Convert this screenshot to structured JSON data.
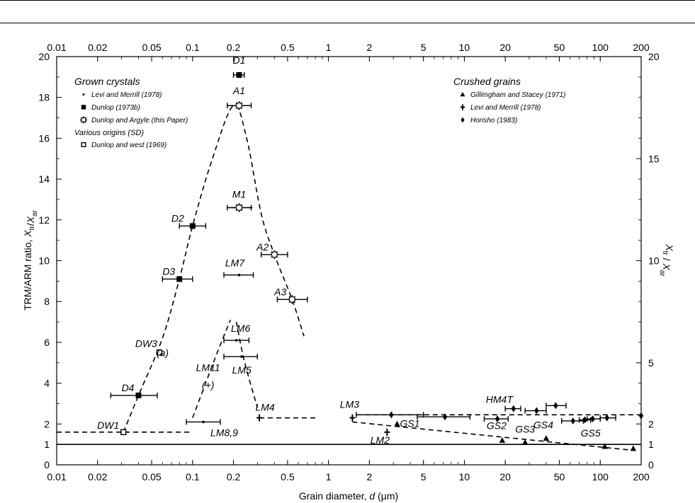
{
  "chart_data": {
    "type": "scatter",
    "x_scale": "log",
    "xlim": [
      0.01,
      200
    ],
    "ylim": [
      0,
      20
    ],
    "xlabel": "Grain diameter, d (μm)",
    "ylabel": "TRM/ARM ratio, X_tr/X_ar",
    "right_ylabel": "X_tr / X_ar",
    "x_ticks": [
      "0.01",
      "0.02",
      "0.05",
      "0.1",
      "0.2",
      "0.5",
      "1",
      "2",
      "5",
      "10",
      "20",
      "50",
      "100",
      "200"
    ],
    "x_tick_values": [
      0.01,
      0.02,
      0.05,
      0.1,
      0.2,
      0.5,
      1,
      2,
      5,
      10,
      20,
      50,
      100,
      200
    ],
    "y_ticks_left": [
      "0",
      "1",
      "2",
      "4",
      "6",
      "8",
      "10",
      "12",
      "14",
      "16",
      "18",
      "20"
    ],
    "y_tick_values_left": [
      0,
      1,
      2,
      4,
      6,
      8,
      10,
      12,
      14,
      16,
      18,
      20
    ],
    "y_ticks_right": [
      "0",
      "1",
      "2",
      "5",
      "10",
      "15",
      "20"
    ],
    "y_tick_values_right": [
      0,
      1,
      2,
      5,
      10,
      15,
      20
    ],
    "grid": false,
    "legends": [
      {
        "title": "Grown crystals",
        "position": "top-left",
        "items": [
          {
            "marker": "small-dot",
            "label": "Levi and Merrill (1978)"
          },
          {
            "marker": "filled-square",
            "label": "Dunlop (1973b)"
          },
          {
            "marker": "open-star",
            "label": "Dunlop and Argyle (this Paper)"
          }
        ],
        "subtitle": "Various origins (SD)",
        "sub_items": [
          {
            "marker": "open-square",
            "label": "Dunlop and west (1969)"
          }
        ]
      },
      {
        "title": "Crushed grains",
        "position": "top-right",
        "items": [
          {
            "marker": "filled-triangle",
            "label": "Gillimgham and Stacey (1971)"
          },
          {
            "marker": "plus",
            "label": "Levi and Merrill (1978)"
          },
          {
            "marker": "filled-diamond",
            "label": "Horisho (1983)"
          }
        ]
      }
    ],
    "points": [
      {
        "label": "D1",
        "x": 0.22,
        "y": 19.1,
        "marker": "filled-square",
        "xerr": [
          0.2,
          0.24
        ]
      },
      {
        "label": "A1",
        "x": 0.22,
        "y": 17.6,
        "marker": "open-star",
        "xerr": [
          0.18,
          0.27
        ]
      },
      {
        "label": "M1",
        "x": 0.22,
        "y": 12.6,
        "marker": "open-star",
        "xerr": [
          0.18,
          0.27
        ]
      },
      {
        "label": "D2",
        "x": 0.1,
        "y": 11.7,
        "marker": "filled-square",
        "xerr": [
          0.08,
          0.125
        ]
      },
      {
        "label": "A2",
        "x": 0.4,
        "y": 10.3,
        "marker": "open-star",
        "xerr": [
          0.32,
          0.5
        ]
      },
      {
        "label": "LM7",
        "x": 0.22,
        "y": 9.3,
        "marker": "small-dot",
        "xerr": [
          0.17,
          0.28
        ]
      },
      {
        "label": "D3",
        "x": 0.08,
        "y": 9.1,
        "marker": "filled-square",
        "xerr": [
          0.06,
          0.1
        ]
      },
      {
        "label": "A3",
        "x": 0.54,
        "y": 8.1,
        "marker": "open-star",
        "xerr": [
          0.42,
          0.7
        ]
      },
      {
        "label": "LM6",
        "x": 0.21,
        "y": 6.1,
        "marker": "small-dot",
        "xerr": [
          0.17,
          0.26
        ]
      },
      {
        "label": "DW3",
        "x": 0.057,
        "y": 5.5,
        "marker": "open-square",
        "xerr": null
      },
      {
        "label": "LM5",
        "x": 0.23,
        "y": 5.3,
        "marker": "small-dot",
        "xerr": [
          0.17,
          0.3
        ]
      },
      {
        "label": "D4",
        "x": 0.04,
        "y": 3.4,
        "marker": "filled-square",
        "xerr": [
          0.025,
          0.055
        ]
      },
      {
        "label": "LM4",
        "x": 0.31,
        "y": 2.3,
        "marker": "plus",
        "xerr": null
      },
      {
        "label": "LM8,9",
        "x": 0.12,
        "y": 2.1,
        "marker": "small-dot",
        "xerr": [
          0.09,
          0.16
        ]
      },
      {
        "label": "DW1",
        "x": 0.031,
        "y": 1.6,
        "marker": "open-square",
        "xerr": null
      },
      {
        "label": "LM3",
        "x": 1.5,
        "y": 2.3,
        "marker": "plus",
        "xerr": null
      },
      {
        "label": "LM2",
        "x": 2.7,
        "y": 1.6,
        "marker": "plus",
        "xerr": null
      },
      {
        "label": "GS1",
        "x": 3.2,
        "y": 2.0,
        "marker": "filled-triangle",
        "xerr": null
      },
      {
        "label": "GS2",
        "x": 19,
        "y": 1.2,
        "marker": "filled-triangle",
        "xerr": null
      },
      {
        "label": "GS3",
        "x": 28,
        "y": 1.1,
        "marker": "filled-triangle",
        "xerr": null
      },
      {
        "label": "GS4",
        "x": 40,
        "y": 1.3,
        "marker": "filled-triangle",
        "xerr": null
      },
      {
        "label": "GS5",
        "x": 108,
        "y": 0.9,
        "marker": "filled-triangle",
        "xerr": null
      },
      {
        "label": "",
        "x": 175,
        "y": 0.8,
        "marker": "filled-triangle",
        "xerr": null
      },
      {
        "label": "",
        "x": 2.9,
        "y": 2.45,
        "marker": "filled-diamond",
        "xerr": [
          1.6,
          5
        ]
      },
      {
        "label": "",
        "x": 7.2,
        "y": 2.35,
        "marker": "filled-diamond",
        "xerr": [
          4.5,
          11
        ]
      },
      {
        "label": "",
        "x": 17.5,
        "y": 2.25,
        "marker": "filled-diamond",
        "xerr": [
          14,
          21
        ]
      },
      {
        "label": "HM4T",
        "x": 23,
        "y": 2.75,
        "marker": "filled-diamond",
        "xerr": [
          20,
          26
        ]
      },
      {
        "label": "",
        "x": 34,
        "y": 2.65,
        "marker": "filled-diamond",
        "xerr": [
          28,
          40
        ]
      },
      {
        "label": "",
        "x": 47,
        "y": 2.9,
        "marker": "filled-diamond",
        "xerr": [
          40,
          56
        ]
      },
      {
        "label": "",
        "x": 63,
        "y": 2.15,
        "marker": "filled-diamond",
        "xerr": [
          52,
          75
        ]
      },
      {
        "label": "",
        "x": 77,
        "y": 2.2,
        "marker": "filled-diamond",
        "xerr": [
          70,
          85
        ]
      },
      {
        "label": "",
        "x": 88,
        "y": 2.25,
        "marker": "filled-diamond",
        "xerr": [
          80,
          100
        ]
      },
      {
        "label": "",
        "x": 112,
        "y": 2.3,
        "marker": "filled-diamond",
        "xerr": [
          100,
          130
        ]
      },
      {
        "label": "",
        "x": 200,
        "y": 2.4,
        "marker": "filled-diamond",
        "xerr": null
      }
    ],
    "annotations": [
      {
        "text": "(+)",
        "x": 0.13,
        "y": 3.75
      },
      {
        "text": "LM11",
        "x": 0.13,
        "y": 4.6
      }
    ],
    "curves": [
      {
        "style": "dashed",
        "points": [
          [
            0.031,
            1.6
          ],
          [
            0.04,
            3.4
          ],
          [
            0.06,
            6.2
          ],
          [
            0.08,
            9.1
          ],
          [
            0.1,
            11.7
          ],
          [
            0.14,
            15.0
          ],
          [
            0.2,
            17.6
          ],
          [
            0.25,
            16.0
          ],
          [
            0.32,
            12.3
          ],
          [
            0.4,
            10.3
          ],
          [
            0.54,
            8.1
          ],
          [
            0.66,
            6.3
          ]
        ]
      },
      {
        "style": "dashed",
        "points": [
          [
            0.1,
            2.3
          ],
          [
            0.15,
            5.4
          ],
          [
            0.19,
            7.1
          ]
        ]
      },
      {
        "style": "dashed",
        "points": [
          [
            0.21,
            7.0
          ],
          [
            0.24,
            5.1
          ],
          [
            0.3,
            2.8
          ]
        ]
      },
      {
        "style": "dashed",
        "points": [
          [
            0.19,
            12.6
          ],
          [
            0.28,
            12.6
          ]
        ]
      },
      {
        "style": "dashed",
        "points": [
          [
            0.01,
            1.6
          ],
          [
            0.1,
            1.6
          ]
        ]
      },
      {
        "style": "dashed",
        "points": [
          [
            0.31,
            2.3
          ],
          [
            0.8,
            2.3
          ]
        ]
      },
      {
        "style": "dashed",
        "points": [
          [
            1.6,
            2.45
          ],
          [
            200,
            2.45
          ]
        ]
      },
      {
        "style": "dashed",
        "points": [
          [
            1.5,
            2.1
          ],
          [
            180,
            0.7
          ]
        ]
      },
      {
        "style": "solid",
        "points": [
          [
            0.01,
            1.0
          ],
          [
            200,
            1.0
          ]
        ]
      }
    ]
  }
}
